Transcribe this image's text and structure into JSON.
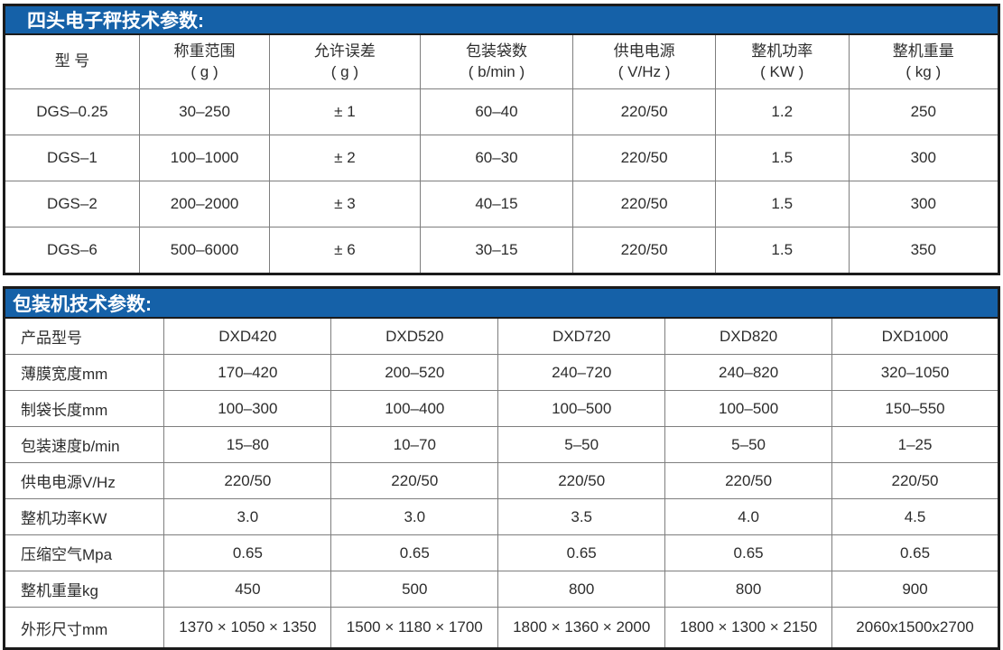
{
  "colors": {
    "title_bar_bg": "#1561a8",
    "title_text": "#ffffff",
    "outer_border": "#1b1b1b",
    "grid_line": "#7e7e7e",
    "cell_text": "#2d2d2d"
  },
  "table1": {
    "title": "四头电子秤技术参数:",
    "headers": [
      [
        "型  号",
        ""
      ],
      [
        "称重范围",
        "( g )"
      ],
      [
        "允许误差",
        "( g )"
      ],
      [
        "包装袋数",
        "( b/min )"
      ],
      [
        "供电电源",
        "( V/Hz )"
      ],
      [
        "整机功率",
        "( KW )"
      ],
      [
        "整机重量",
        "( kg )"
      ]
    ],
    "col_widths_pct": [
      13.6,
      13.1,
      15.1,
      15.4,
      14.3,
      13.4,
      15.1
    ],
    "rows": [
      [
        "DGS–0.25",
        "30–250",
        "± 1",
        "60–40",
        "220/50",
        "1.2",
        "250"
      ],
      [
        "DGS–1",
        "100–1000",
        "± 2",
        "60–30",
        "220/50",
        "1.5",
        "300"
      ],
      [
        "DGS–2",
        "200–2000",
        "± 3",
        "40–15",
        "220/50",
        "1.5",
        "300"
      ],
      [
        "DGS–6",
        "500–6000",
        "± 6",
        "30–15",
        "220/50",
        "1.5",
        "350"
      ]
    ]
  },
  "table2": {
    "title": "包装机技术参数:",
    "col_widths_pct": [
      16.1,
      16.78,
      16.78,
      16.78,
      16.78,
      16.78
    ],
    "rows": [
      [
        "产品型号",
        "DXD420",
        "DXD520",
        "DXD720",
        "DXD820",
        "DXD1000"
      ],
      [
        "薄膜宽度mm",
        "170–420",
        "200–520",
        "240–720",
        "240–820",
        "320–1050"
      ],
      [
        "制袋长度mm",
        "100–300",
        "100–400",
        "100–500",
        "100–500",
        "150–550"
      ],
      [
        "包装速度b/min",
        "15–80",
        "10–70",
        "5–50",
        "5–50",
        "1–25"
      ],
      [
        "供电电源V/Hz",
        "220/50",
        "220/50",
        "220/50",
        "220/50",
        "220/50"
      ],
      [
        "整机功率KW",
        "3.0",
        "3.0",
        "3.5",
        "4.0",
        "4.5"
      ],
      [
        "压缩空气Mpa",
        "0.65",
        "0.65",
        "0.65",
        "0.65",
        "0.65"
      ],
      [
        "整机重量kg",
        "450",
        "500",
        "800",
        "800",
        "900"
      ],
      [
        "外形尺寸mm",
        "1370 × 1050 × 1350",
        "1500 × 1180 × 1700",
        "1800 × 1360 × 2000",
        "1800 × 1300 × 2150",
        "2060x1500x2700"
      ]
    ]
  }
}
